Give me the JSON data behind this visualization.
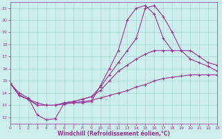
{
  "xlabel": "Windchill (Refroidissement éolien,°C)",
  "xlim": [
    0,
    23
  ],
  "ylim": [
    11.5,
    21.5
  ],
  "yticks": [
    12,
    13,
    14,
    15,
    16,
    17,
    18,
    19,
    20,
    21
  ],
  "xticks": [
    0,
    1,
    2,
    3,
    4,
    5,
    6,
    7,
    8,
    9,
    10,
    11,
    12,
    13,
    14,
    15,
    16,
    17,
    18,
    19,
    20,
    21,
    22,
    23
  ],
  "background_color": "#cdeeed",
  "line_color": "#993399",
  "grid_color": "#a8d8d8",
  "lines": [
    {
      "x": [
        0,
        1,
        2,
        3,
        4,
        5,
        6,
        7,
        8,
        9,
        10,
        11,
        12,
        13,
        14,
        15,
        16,
        17,
        18
      ],
      "y": [
        14.8,
        14.0,
        13.6,
        12.2,
        11.8,
        11.9,
        13.2,
        13.2,
        13.2,
        13.3,
        14.6,
        16.0,
        17.5,
        20.0,
        21.0,
        21.2,
        20.5,
        18.5,
        17.5
      ]
    },
    {
      "x": [
        0,
        1,
        2,
        3,
        4,
        5,
        6,
        7,
        8,
        9,
        10,
        11,
        12,
        13,
        14,
        15,
        16,
        17,
        18,
        19,
        20,
        21,
        22,
        23
      ],
      "y": [
        14.8,
        13.8,
        13.5,
        13.2,
        13.0,
        13.0,
        13.1,
        13.2,
        13.3,
        13.4,
        13.6,
        13.8,
        14.0,
        14.2,
        14.5,
        14.7,
        15.0,
        15.2,
        15.3,
        15.4,
        15.5,
        15.5,
        15.5,
        15.5
      ]
    },
    {
      "x": [
        0,
        1,
        2,
        3,
        4,
        5,
        6,
        7,
        8,
        9,
        10,
        11,
        12,
        13,
        14,
        15,
        16,
        17,
        18,
        19,
        20,
        21,
        22,
        23
      ],
      "y": [
        14.8,
        13.8,
        13.5,
        13.0,
        13.0,
        13.0,
        13.2,
        13.3,
        13.5,
        13.7,
        14.2,
        15.0,
        15.8,
        16.3,
        16.8,
        17.2,
        17.5,
        17.5,
        17.5,
        17.5,
        17.5,
        17.0,
        16.5,
        16.3
      ]
    },
    {
      "x": [
        0,
        1,
        2,
        3,
        4,
        5,
        6,
        7,
        8,
        9,
        10,
        11,
        12,
        13,
        14,
        15,
        16,
        17,
        18,
        19,
        20,
        21,
        22,
        23
      ],
      "y": [
        14.8,
        13.8,
        13.5,
        13.0,
        13.0,
        13.0,
        13.2,
        13.3,
        13.5,
        13.7,
        14.5,
        15.5,
        16.5,
        17.5,
        18.5,
        21.0,
        21.2,
        20.3,
        19.0,
        17.5,
        16.8,
        16.5,
        16.2,
        15.8
      ]
    }
  ]
}
